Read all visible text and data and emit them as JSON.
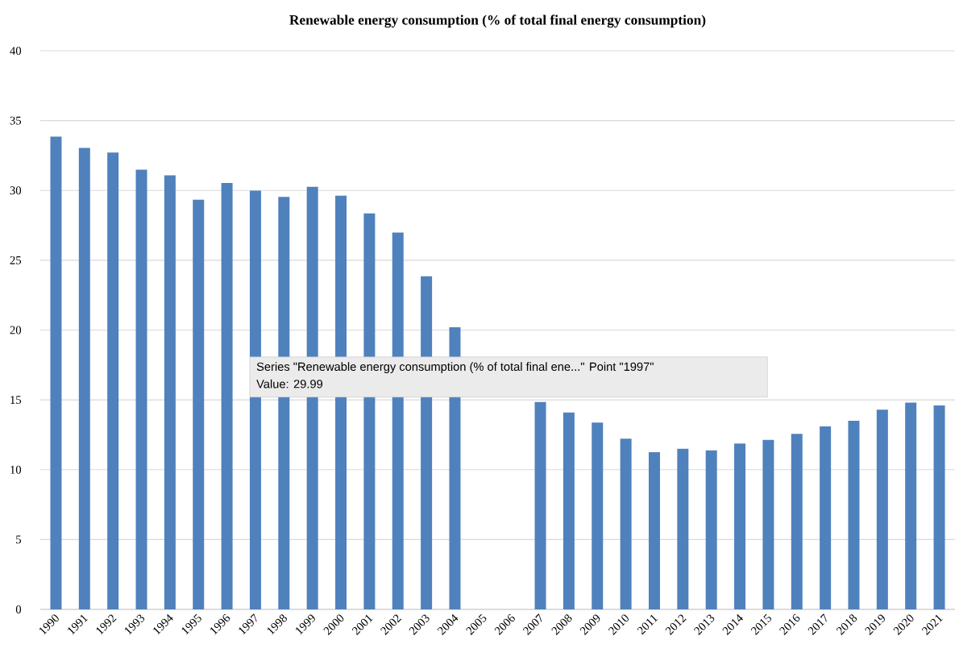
{
  "chart_data": {
    "type": "bar",
    "title": "Renewable energy consumption (% of total final energy consumption)",
    "categories": [
      "1990",
      "1991",
      "1992",
      "1993",
      "1994",
      "1995",
      "1996",
      "1997",
      "1998",
      "1999",
      "2000",
      "2001",
      "2002",
      "2003",
      "2004",
      "2005",
      "2006",
      "2007",
      "2008",
      "2009",
      "2010",
      "2011",
      "2012",
      "2013",
      "2014",
      "2015",
      "2016",
      "2017",
      "2018",
      "2019",
      "2020",
      "2021"
    ],
    "values": [
      33.85,
      33.04,
      32.71,
      31.48,
      31.08,
      29.34,
      30.53,
      29.99,
      29.54,
      30.26,
      29.63,
      28.35,
      26.98,
      23.85,
      20.2,
      null,
      null,
      14.85,
      14.1,
      13.38,
      12.22,
      11.26,
      11.5,
      11.39,
      11.88,
      12.14,
      12.57,
      13.1,
      13.5,
      14.3,
      14.8,
      14.6
    ],
    "color": "#4f81bd",
    "ylim": [
      0,
      40
    ],
    "yticks": [
      0,
      5,
      10,
      15,
      20,
      25,
      30,
      35,
      40
    ],
    "grid": "y",
    "annotations": [
      "Series \"Renewable energy consumption (% of total final ene...\" Point \"1997\"",
      "Value: 29.99"
    ]
  }
}
